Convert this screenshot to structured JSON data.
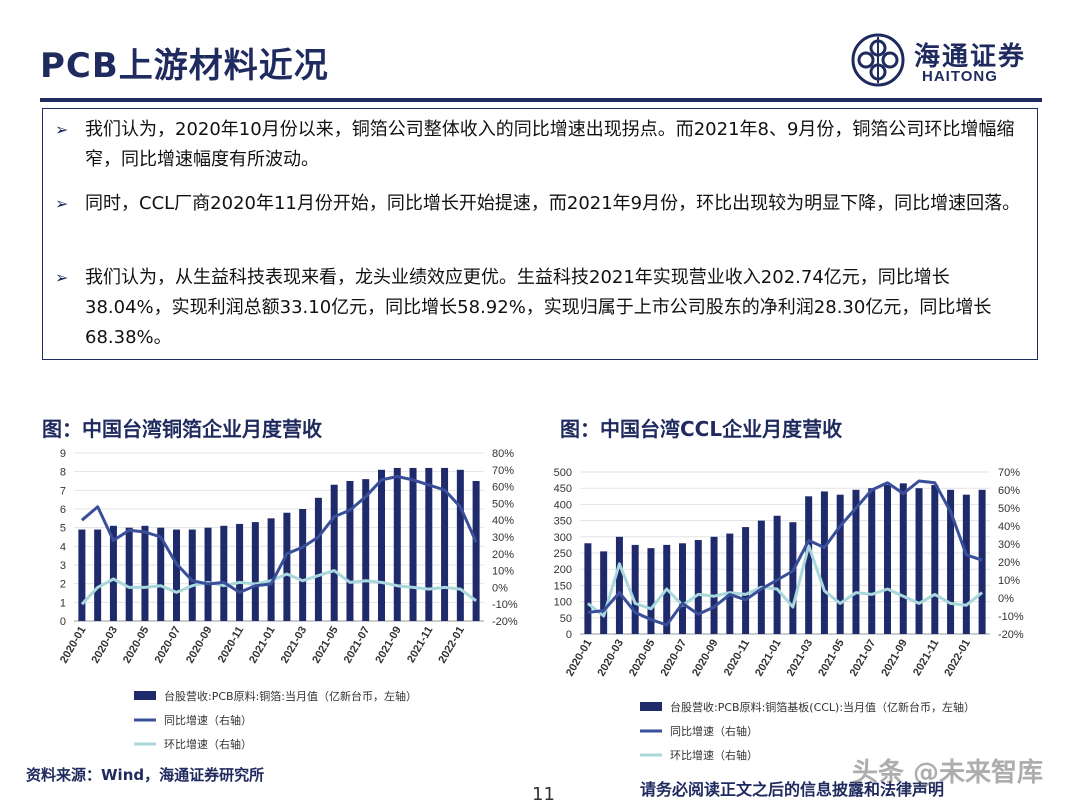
{
  "slide": {
    "title": "PCB上游材料近况",
    "logo_cn": "海通证券",
    "logo_en": "HAITONG",
    "bullet_marker": "➢",
    "bullets": [
      "我们认为，2020年10月份以来，铜箔公司整体收入的同比增速出现拐点。而2021年8、9月份，铜箔公司环比增幅缩窄，同比增速幅度有所波动。",
      "同时，CCL厂商2020年11月份开始，同比增长开始提速，而2021年9月份，环比出现较为明显下降，同比增速回落。",
      "我们认为，从生益科技表现来看，龙头业绩效应更优。生益科技2021年实现营业收入202.74亿元，同比增长38.04%，实现利润总额33.10亿元，同比增长58.92%，实现归属于上市公司股东的净利润28.30亿元，同比增长68.38%。"
    ],
    "source": "资料来源：Wind，海通证券研究所",
    "page_number": "11",
    "disclaimer": "请务必阅读正文之后的信息披露和法律声明",
    "watermark": "头条 @未来智库"
  },
  "colors": {
    "bar": "#1f2a6b",
    "yoy": "#3a4f9a",
    "mom": "#a9d8dc",
    "navy": "#1f2a5e"
  },
  "chart_data": [
    {
      "type": "bar",
      "title": "图：中国台湾铜箔企业月度营收",
      "tick_labels": [
        "2020-01",
        "2020-03",
        "2020-05",
        "2020-07",
        "2020-09",
        "2020-11",
        "2021-01",
        "2021-03",
        "2021-05",
        "2021-07",
        "2021-09",
        "2021-11",
        "2022-01"
      ],
      "ylim": [
        0,
        9
      ],
      "yticks": [
        "0",
        "1",
        "2",
        "3",
        "4",
        "5",
        "6",
        "7",
        "8",
        "9"
      ],
      "y2lim": [
        -20,
        80
      ],
      "y2ticks": [
        "-20%",
        "-10%",
        "0%",
        "10%",
        "20%",
        "30%",
        "40%",
        "50%",
        "60%",
        "70%",
        "80%"
      ],
      "series": [
        {
          "name": "台股营收:PCB原料:铜箔:当月值（亿新台币，左轴）",
          "kind": "bar",
          "axis": "left",
          "values": [
            4.9,
            4.9,
            5.1,
            5.0,
            5.1,
            5.0,
            4.9,
            4.9,
            5.0,
            5.1,
            5.2,
            5.3,
            5.5,
            5.8,
            6.0,
            6.6,
            7.3,
            7.5,
            7.6,
            8.1,
            8.2,
            8.2,
            8.2,
            8.2,
            8.1,
            7.5
          ]
        },
        {
          "name": "同比增速（右轴）",
          "kind": "line",
          "axis": "right",
          "values": [
            40,
            48,
            28,
            34,
            33,
            30,
            14,
            4,
            2,
            3,
            -3,
            1,
            2,
            20,
            24,
            30,
            42,
            46,
            54,
            64,
            66,
            64,
            61,
            58,
            48,
            27
          ]
        },
        {
          "name": "环比增速（右轴）",
          "kind": "line",
          "axis": "right",
          "values": [
            -10,
            0,
            5,
            0,
            0,
            1,
            -3,
            1,
            3,
            1,
            3,
            2,
            4,
            8,
            4,
            7,
            10,
            3,
            4,
            3,
            1,
            0,
            -1,
            0,
            -1,
            -8
          ]
        }
      ]
    },
    {
      "type": "bar",
      "title": "图：中国台湾CCL企业月度营收",
      "tick_labels": [
        "2020-01",
        "2020-03",
        "2020-05",
        "2020-07",
        "2020-09",
        "2020-11",
        "2021-01",
        "2021-03",
        "2021-05",
        "2021-07",
        "2021-09",
        "2021-11",
        "2022-01"
      ],
      "ylim": [
        0,
        500
      ],
      "yticks": [
        "0",
        "50",
        "100",
        "150",
        "200",
        "250",
        "300",
        "350",
        "400",
        "450",
        "500"
      ],
      "y2lim": [
        -20,
        70
      ],
      "y2ticks": [
        "-20%",
        "-10%",
        "0%",
        "10%",
        "20%",
        "30%",
        "40%",
        "50%",
        "60%",
        "70%"
      ],
      "series": [
        {
          "name": "台股营收:PCB原料:铜箔基板(CCL):当月值（亿新台币，左轴）",
          "kind": "bar",
          "axis": "left",
          "values": [
            280,
            255,
            300,
            275,
            265,
            275,
            280,
            290,
            300,
            310,
            330,
            350,
            365,
            345,
            425,
            440,
            430,
            445,
            450,
            460,
            465,
            450,
            460,
            445,
            430,
            445
          ]
        },
        {
          "name": "同比增速（右轴）",
          "kind": "line",
          "axis": "right",
          "values": [
            -8,
            -7,
            3,
            -8,
            -12,
            -15,
            -3,
            -9,
            -5,
            2,
            -1,
            5,
            10,
            15,
            32,
            28,
            40,
            50,
            60,
            64,
            58,
            65,
            64,
            48,
            24,
            21
          ]
        },
        {
          "name": "环比增速（右轴）",
          "kind": "line",
          "axis": "right",
          "values": [
            -3,
            -10,
            19,
            -3,
            -6,
            5,
            -4,
            2,
            1,
            3,
            2,
            6,
            5,
            -5,
            29,
            4,
            -3,
            3,
            2,
            5,
            1,
            -3,
            2,
            -3,
            -4,
            3
          ]
        }
      ]
    }
  ]
}
